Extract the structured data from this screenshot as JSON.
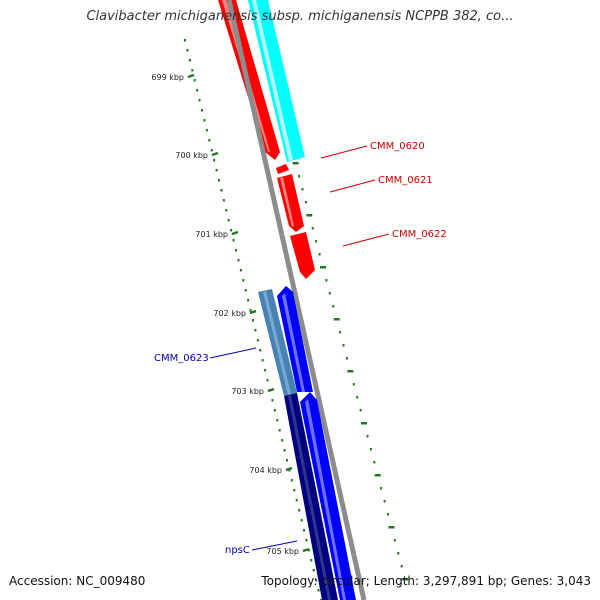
{
  "title": "Clavibacter michiganensis subsp. michiganensis NCPPB 382, co...",
  "footer": {
    "accession": "Accession: NC_009480",
    "summary": "Topology: circular; Length: 3,297,891 bp; Genes: 3,043"
  },
  "ruler": {
    "ticks": [
      "699 kbp",
      "700 kbp",
      "701 kbp",
      "702 kbp",
      "703 kbp",
      "704 kbp",
      "705 kbp"
    ]
  },
  "genes": {
    "right_labels": [
      "CMM_0620",
      "CMM_0621",
      "CMM_0622"
    ],
    "left_labels": [
      "CMM_0623",
      "npsC"
    ]
  },
  "colors": {
    "backbone": "#8c8c8c",
    "tick": "#1e7a1e",
    "red_gene": "#ff0000",
    "cyan_gene": "#00ffff",
    "blue_gene": "#0000ff",
    "steel_gene": "#4682b4",
    "navy_gene": "#000080",
    "right_label": "#cc0000",
    "left_label": "#0000aa"
  }
}
